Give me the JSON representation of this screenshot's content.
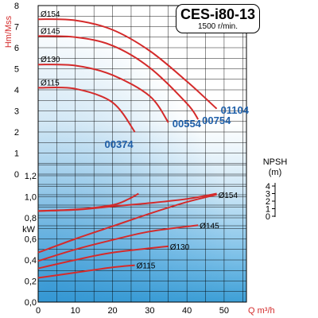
{
  "header": {
    "title": "CES-i80-13",
    "speed": "1500 r/min."
  },
  "colors": {
    "curve": "#d42b2b",
    "model_label": "#1f5fa8",
    "grid": "#000000",
    "background_light": "#ffffff",
    "background_blue": "#3d9fd6"
  },
  "chart_data": {
    "type": "line",
    "xlabel": "Q m³/h",
    "x_ticks": [
      "0",
      "10",
      "20",
      "30",
      "40",
      "50"
    ],
    "xlim": [
      0,
      56
    ],
    "grid": true,
    "head": {
      "ylabel": "Hm/Mss",
      "y_ticks": [
        "8",
        "7",
        "6",
        "5",
        "4",
        "3",
        "2",
        "1",
        "0"
      ],
      "ylim": [
        0,
        8
      ],
      "series": [
        {
          "name": "Ø154",
          "model": "01104",
          "x": [
            0,
            10,
            20,
            30,
            40,
            48
          ],
          "y": [
            7.35,
            7.3,
            6.85,
            5.85,
            4.4,
            3.1
          ]
        },
        {
          "name": "Ø145",
          "model": "00754",
          "x": [
            0,
            10,
            20,
            30,
            40,
            43
          ],
          "y": [
            6.55,
            6.5,
            6.1,
            5.05,
            3.35,
            2.6
          ]
        },
        {
          "name": "Ø130",
          "model": "00554",
          "x": [
            0,
            10,
            20,
            30,
            35
          ],
          "y": [
            5.2,
            5.15,
            4.7,
            3.7,
            2.45
          ]
        },
        {
          "name": "Ø115",
          "model": "00374",
          "x": [
            0,
            10,
            20,
            26
          ],
          "y": [
            4.1,
            4.05,
            3.4,
            2.0
          ]
        }
      ]
    },
    "npsh": {
      "ylabel": "NPSH\n(m)",
      "y_ticks": [
        "4",
        "3",
        "2",
        "1",
        "0"
      ],
      "ylim": [
        0,
        4
      ],
      "series": [
        {
          "x": [
            0,
            10,
            20,
            30,
            40,
            48
          ],
          "y": [
            0.7,
            0.85,
            1.3,
            1.75,
            2.3,
            3.0
          ]
        },
        {
          "x": [
            0,
            10,
            20,
            24,
            27
          ],
          "y": [
            0.7,
            0.9,
            1.5,
            2.2,
            3.0
          ]
        }
      ]
    },
    "power": {
      "ylabel": "kW",
      "y_ticks": [
        "1,2",
        "1,0",
        "0,8",
        "0,6",
        "0,4",
        "0,2",
        "0,0"
      ],
      "ylim": [
        0,
        1.3
      ],
      "series": [
        {
          "name": "Ø154",
          "x": [
            0,
            10,
            20,
            30,
            40,
            48
          ],
          "y": [
            0.47,
            0.6,
            0.72,
            0.84,
            0.95,
            1.02
          ]
        },
        {
          "name": "Ø145",
          "x": [
            0,
            10,
            20,
            30,
            43
          ],
          "y": [
            0.39,
            0.5,
            0.59,
            0.67,
            0.73
          ]
        },
        {
          "name": "Ø130",
          "x": [
            0,
            10,
            20,
            35
          ],
          "y": [
            0.32,
            0.4,
            0.47,
            0.53
          ]
        },
        {
          "name": "Ø115",
          "x": [
            0,
            10,
            20,
            26
          ],
          "y": [
            0.23,
            0.28,
            0.33,
            0.35
          ]
        }
      ]
    }
  }
}
